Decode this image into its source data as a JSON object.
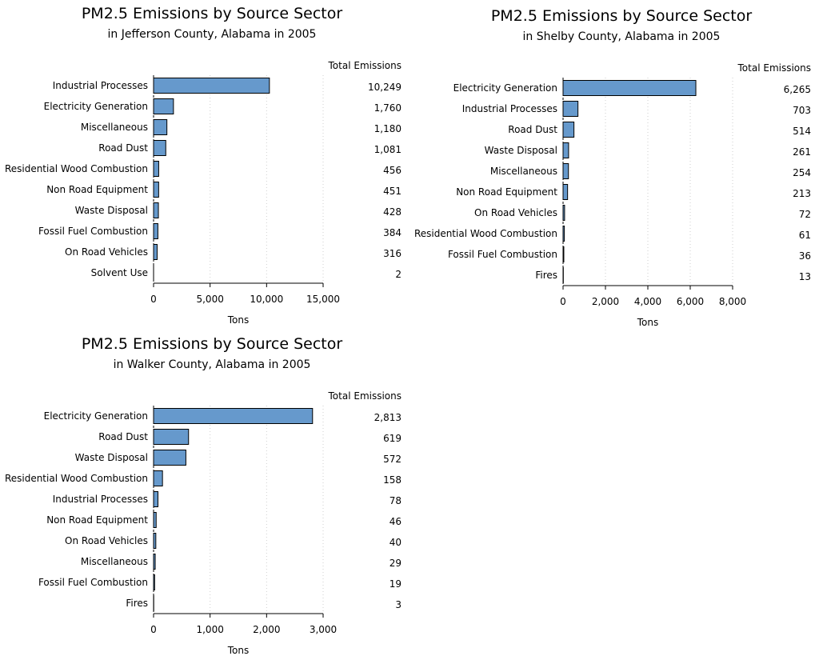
{
  "chart_data": [
    {
      "type": "bar",
      "orientation": "horizontal",
      "title": "PM2.5 Emissions by Source Sector",
      "subtitle": "in Jefferson County, Alabama in 2005",
      "xlabel": "Tons",
      "value_column_header": "Total Emissions",
      "categories": [
        "Industrial Processes",
        "Electricity Generation",
        "Miscellaneous",
        "Road Dust",
        "Residential Wood Combustion",
        "Non Road Equipment",
        "Waste Disposal",
        "Fossil Fuel Combustion",
        "On Road Vehicles",
        "Solvent Use"
      ],
      "values": [
        10249,
        1760,
        1180,
        1081,
        456,
        451,
        428,
        384,
        316,
        2
      ],
      "value_labels": [
        "10,249",
        "1,760",
        "1,180",
        "1,081",
        "456",
        "451",
        "428",
        "384",
        "316",
        "2"
      ],
      "xticks": [
        0,
        5000,
        10000,
        15000
      ],
      "xtick_labels": [
        "0",
        "5,000",
        "10,000",
        "15,000"
      ],
      "xlim": [
        0,
        15000
      ],
      "grid": "vertical dotted",
      "bar_color": "#6699cc"
    },
    {
      "type": "bar",
      "orientation": "horizontal",
      "title": "PM2.5 Emissions by Source Sector",
      "subtitle": "in Shelby County, Alabama in 2005",
      "xlabel": "Tons",
      "value_column_header": "Total Emissions",
      "categories": [
        "Electricity Generation",
        "Industrial Processes",
        "Road Dust",
        "Waste Disposal",
        "Miscellaneous",
        "Non Road Equipment",
        "On Road Vehicles",
        "Residential Wood Combustion",
        "Fossil Fuel Combustion",
        "Fires"
      ],
      "values": [
        6265,
        703,
        514,
        261,
        254,
        213,
        72,
        61,
        36,
        13
      ],
      "value_labels": [
        "6,265",
        "703",
        "514",
        "261",
        "254",
        "213",
        "72",
        "61",
        "36",
        "13"
      ],
      "xticks": [
        0,
        2000,
        4000,
        6000,
        8000
      ],
      "xtick_labels": [
        "0",
        "2,000",
        "4,000",
        "6,000",
        "8,000"
      ],
      "xlim": [
        0,
        8000
      ],
      "grid": "vertical dotted",
      "bar_color": "#6699cc"
    },
    {
      "type": "bar",
      "orientation": "horizontal",
      "title": "PM2.5 Emissions by Source Sector",
      "subtitle": "in Walker County, Alabama in 2005",
      "xlabel": "Tons",
      "value_column_header": "Total Emissions",
      "categories": [
        "Electricity Generation",
        "Road Dust",
        "Waste Disposal",
        "Residential Wood Combustion",
        "Industrial Processes",
        "Non Road Equipment",
        "On Road Vehicles",
        "Miscellaneous",
        "Fossil Fuel Combustion",
        "Fires"
      ],
      "values": [
        2813,
        619,
        572,
        158,
        78,
        46,
        40,
        29,
        19,
        3
      ],
      "value_labels": [
        "2,813",
        "619",
        "572",
        "158",
        "78",
        "46",
        "40",
        "29",
        "19",
        "3"
      ],
      "xticks": [
        0,
        1000,
        2000,
        3000
      ],
      "xtick_labels": [
        "0",
        "1,000",
        "2,000",
        "3,000"
      ],
      "xlim": [
        0,
        3000
      ],
      "grid": "vertical dotted",
      "bar_color": "#6699cc"
    }
  ]
}
